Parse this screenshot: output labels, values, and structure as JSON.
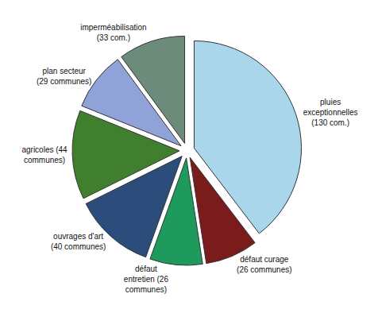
{
  "chart_data": {
    "type": "pie",
    "categories": [
      "pluies exceptionnelles (130 com.)",
      "défaut curage (26 communes)",
      "défaut entretien (26 communes)",
      "ouvrages d'art (40 communes)",
      "agricoles (44 communes)",
      "plan secteur (29 communes)",
      "imperméabilisation (33 com.)"
    ],
    "values": [
      130,
      26,
      26,
      40,
      44,
      29,
      33
    ],
    "colors": [
      "#a9d6ea",
      "#7b1c1c",
      "#1e9a5c",
      "#2c4c7c",
      "#3f7f2e",
      "#8fa3d9",
      "#6d8b7b"
    ]
  }
}
